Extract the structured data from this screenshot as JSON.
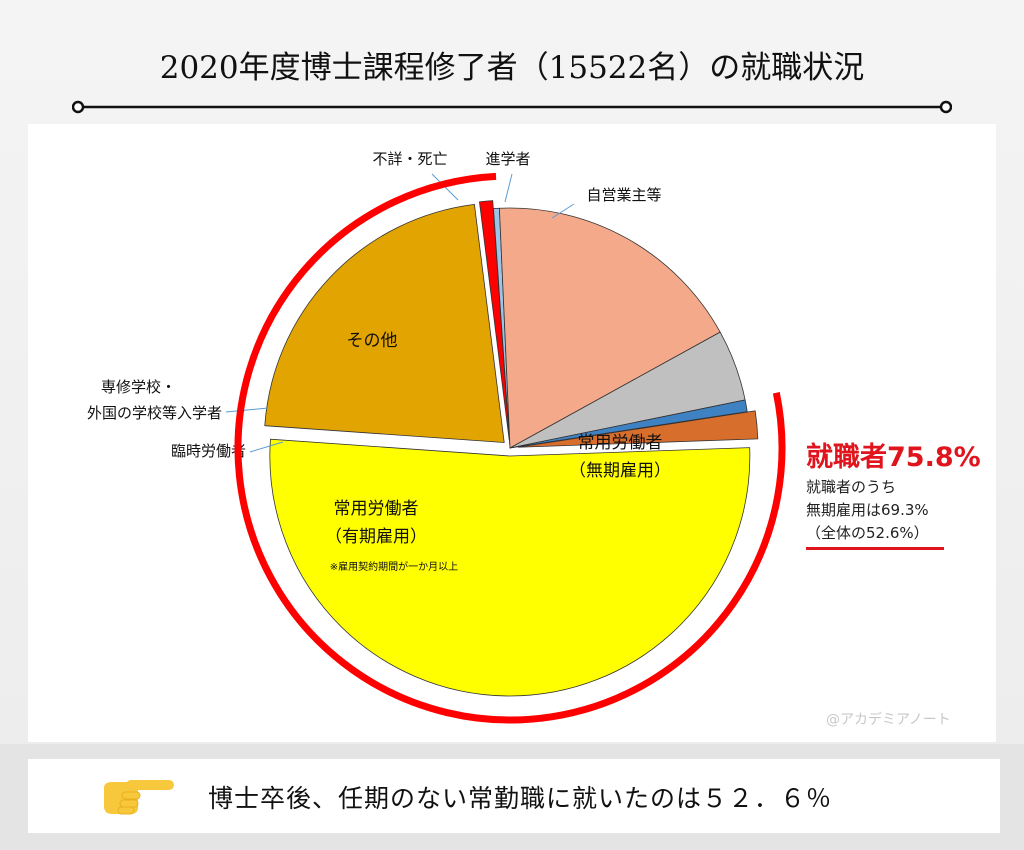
{
  "title": "2020年度博士課程修了者（15522名）の就職状況",
  "chart_data": {
    "type": "pie",
    "total": 15522,
    "unit": "%",
    "slices": [
      {
        "key": "mukiki",
        "label": "常用労働者",
        "sublabel": "（無期雇用）",
        "value": 52.6,
        "color": "#ffff00",
        "exploded": true
      },
      {
        "key": "yukiki",
        "label": "常用労働者",
        "sublabel": "（有期雇用）",
        "note": "※雇用契約期間が一か月以上",
        "value": 22.3,
        "color": "#e2a400",
        "exploded": true
      },
      {
        "key": "rinji",
        "label": "臨時労働者",
        "value": 0.9,
        "color": "#ff0000",
        "exploded": true
      },
      {
        "key": "senshu",
        "label": "専修学校・",
        "label2": "外国の学校等入学者",
        "value": 0.4,
        "color": "#9dc3e6",
        "exploded": false
      },
      {
        "key": "sonota",
        "label": "その他",
        "value": 18.0,
        "color": "#f4a98a",
        "exploded": false
      },
      {
        "key": "fusho",
        "label": "不詳・死亡",
        "value": 4.9,
        "color": "#c0c0c0",
        "exploded": false
      },
      {
        "key": "shingaku",
        "label": "進学者",
        "value": 0.8,
        "color": "#3f82c4",
        "exploded": false
      },
      {
        "key": "jiei",
        "label": "自営業主等",
        "value": 1.9,
        "color": "#d86e2c",
        "exploded": true
      }
    ],
    "highlight": {
      "title": "就職者75.8%",
      "line1": "就職者のうち",
      "line2": "無期雇用は69.3%",
      "line3": "（全体の52.6%）",
      "color": "#e0141c"
    }
  },
  "watermark": "@アカデミアノート",
  "bottom": {
    "text": "博士卒後、任期のない常勤職に就いたのは５２．６％",
    "icon": "pointing-hand-icon",
    "icon_color": "#f7c83c"
  }
}
